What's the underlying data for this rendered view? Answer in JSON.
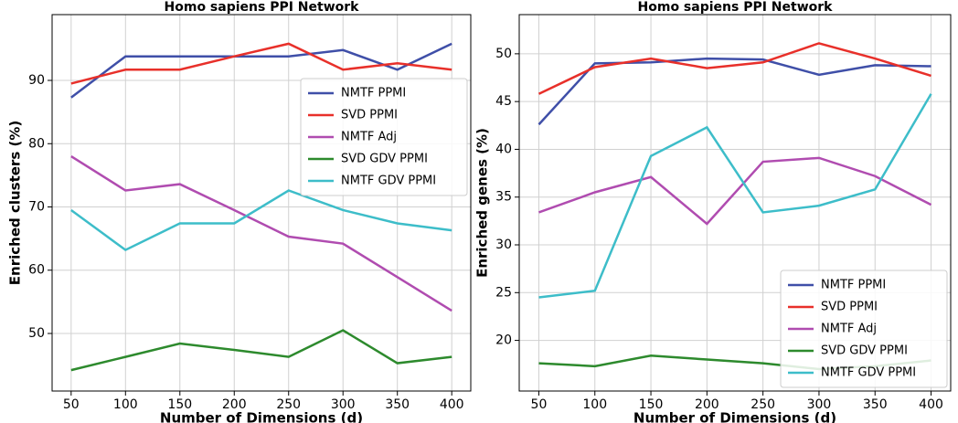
{
  "chart_data": [
    {
      "type": "line",
      "title": "Homo sapiens PPI Network",
      "x_label": "Number of Dimensions (d)",
      "y_label": "Enriched clusters (%)",
      "x": [
        50,
        100,
        150,
        200,
        250,
        300,
        350,
        400
      ],
      "xlim": [
        32.5,
        417.5
      ],
      "xticks": [
        50,
        100,
        150,
        200,
        250,
        300,
        350,
        400
      ],
      "ylim": [
        40.9,
        100.4
      ],
      "yticks": [
        50,
        60,
        70,
        80,
        90
      ],
      "grid": true,
      "legend": "upper right",
      "series": [
        {
          "name": "NMTF PPMI",
          "color": "#3f4fa8",
          "values": [
            87.3,
            93.8,
            93.8,
            93.8,
            93.8,
            94.8,
            91.7,
            95.8
          ]
        },
        {
          "name": "SVD PPMI",
          "color": "#e8302a",
          "values": [
            89.5,
            91.7,
            91.7,
            93.8,
            95.8,
            91.7,
            92.7,
            91.7
          ]
        },
        {
          "name": "NMTF Adj",
          "color": "#b04cb0",
          "values": [
            78.0,
            72.6,
            73.6,
            69.5,
            65.3,
            64.2,
            58.9,
            53.6
          ]
        },
        {
          "name": "SVD GDV PPMI",
          "color": "#2d8a2d",
          "values": [
            44.2,
            46.3,
            48.4,
            47.4,
            46.3,
            50.5,
            45.3,
            46.3
          ]
        },
        {
          "name": "NMTF GDV PPMI",
          "color": "#3dbdc9",
          "values": [
            69.5,
            63.2,
            67.4,
            67.4,
            72.6,
            69.5,
            67.4,
            66.3
          ]
        }
      ]
    },
    {
      "type": "line",
      "title": "Homo sapiens PPI Network",
      "x_label": "Number of Dimensions (d)",
      "y_label": "Enriched genes (%)",
      "x": [
        50,
        100,
        150,
        200,
        250,
        300,
        350,
        400
      ],
      "xlim": [
        32.5,
        417.5
      ],
      "xticks": [
        50,
        100,
        150,
        200,
        250,
        300,
        350,
        400
      ],
      "ylim": [
        14.7,
        54.1
      ],
      "yticks": [
        20,
        25,
        30,
        35,
        40,
        45,
        50
      ],
      "grid": true,
      "legend": "lower right",
      "series": [
        {
          "name": "NMTF PPMI",
          "color": "#3f4fa8",
          "values": [
            42.6,
            49.0,
            49.1,
            49.5,
            49.4,
            47.8,
            48.8,
            48.7
          ]
        },
        {
          "name": "SVD PPMI",
          "color": "#e8302a",
          "values": [
            45.8,
            48.6,
            49.5,
            48.5,
            49.1,
            51.1,
            49.5,
            47.7
          ]
        },
        {
          "name": "NMTF Adj",
          "color": "#b04cb0",
          "values": [
            33.4,
            35.5,
            37.1,
            32.2,
            38.7,
            39.1,
            37.2,
            34.2
          ]
        },
        {
          "name": "SVD GDV PPMI",
          "color": "#2d8a2d",
          "values": [
            17.6,
            17.3,
            18.4,
            18.0,
            17.6,
            17.0,
            17.3,
            17.9
          ]
        },
        {
          "name": "NMTF GDV PPMI",
          "color": "#3dbdc9",
          "values": [
            24.5,
            25.2,
            39.3,
            42.3,
            33.4,
            34.1,
            35.8,
            45.8
          ]
        }
      ]
    }
  ]
}
